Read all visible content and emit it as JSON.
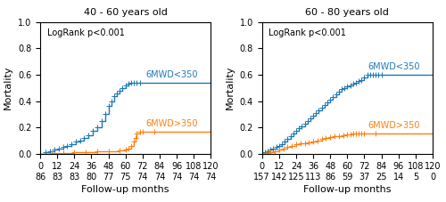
{
  "chart_data": [
    {
      "type": "step",
      "title": "40 - 60 years old",
      "xlabel": "Follow-up months",
      "ylabel": "Mortality",
      "xlim": [
        0,
        120
      ],
      "ylim": [
        0,
        1.0
      ],
      "xticks": [
        0,
        12,
        24,
        36,
        48,
        60,
        72,
        84,
        96,
        108,
        120
      ],
      "yticks": [
        0.0,
        0.2,
        0.4,
        0.6,
        0.8,
        1.0
      ],
      "grid": false,
      "annotations": [
        "LogRank p<0.001"
      ],
      "at_risk": [
        86,
        83,
        83,
        80,
        77,
        75,
        74,
        74,
        74,
        74,
        74
      ],
      "series": [
        {
          "name": "6MWD<350",
          "marker": "plus",
          "x": [
            0,
            4,
            7,
            10,
            13,
            16,
            19,
            22,
            25,
            28,
            31,
            34,
            37,
            40,
            43,
            46,
            48,
            50,
            52,
            54,
            56,
            58,
            60,
            62,
            64,
            66,
            68,
            70,
            120
          ],
          "values": [
            0.0,
            0.01,
            0.02,
            0.03,
            0.04,
            0.05,
            0.06,
            0.07,
            0.09,
            0.1,
            0.12,
            0.14,
            0.17,
            0.2,
            0.25,
            0.3,
            0.36,
            0.4,
            0.44,
            0.46,
            0.48,
            0.5,
            0.52,
            0.53,
            0.54,
            0.54,
            0.54,
            0.54,
            0.54
          ]
        },
        {
          "name": "6MWD>350",
          "marker": "plus",
          "x": [
            0,
            8,
            16,
            24,
            32,
            40,
            48,
            56,
            60,
            62,
            64,
            66,
            67,
            68,
            70,
            72,
            80,
            120
          ],
          "values": [
            0.0,
            0.003,
            0.005,
            0.008,
            0.01,
            0.015,
            0.02,
            0.025,
            0.03,
            0.04,
            0.06,
            0.09,
            0.12,
            0.155,
            0.165,
            0.165,
            0.165,
            0.165
          ]
        }
      ]
    },
    {
      "type": "step",
      "title": "60 - 80 years old",
      "xlabel": "Follow-up months",
      "ylabel": "Mortality",
      "xlim": [
        0,
        120
      ],
      "ylim": [
        0,
        1.0
      ],
      "xticks": [
        0,
        12,
        24,
        36,
        48,
        60,
        72,
        84,
        96,
        108,
        120
      ],
      "yticks": [
        0.0,
        0.2,
        0.4,
        0.6,
        0.8,
        1.0
      ],
      "grid": false,
      "annotations": [
        "LogRank p<0.001"
      ],
      "at_risk": [
        157,
        142,
        125,
        113,
        86,
        59,
        37,
        25,
        14,
        5,
        0
      ],
      "series": [
        {
          "name": "6MWD<350",
          "marker": "plus",
          "x": [
            0,
            2,
            4,
            6,
            8,
            10,
            12,
            14,
            16,
            18,
            20,
            22,
            24,
            26,
            28,
            30,
            32,
            34,
            36,
            38,
            40,
            42,
            44,
            46,
            48,
            50,
            52,
            54,
            56,
            58,
            60,
            62,
            64,
            66,
            68,
            70,
            72,
            74,
            76,
            78,
            80,
            82,
            84,
            120
          ],
          "values": [
            0.0,
            0.01,
            0.02,
            0.03,
            0.04,
            0.05,
            0.06,
            0.07,
            0.09,
            0.11,
            0.13,
            0.15,
            0.17,
            0.19,
            0.21,
            0.23,
            0.25,
            0.27,
            0.29,
            0.31,
            0.33,
            0.35,
            0.37,
            0.39,
            0.41,
            0.43,
            0.45,
            0.47,
            0.49,
            0.5,
            0.51,
            0.52,
            0.53,
            0.54,
            0.55,
            0.56,
            0.58,
            0.6,
            0.6,
            0.6,
            0.6,
            0.6,
            0.6,
            0.6
          ]
        },
        {
          "name": "6MWD>350",
          "marker": "plus",
          "x": [
            0,
            3,
            6,
            9,
            12,
            15,
            18,
            21,
            24,
            27,
            30,
            33,
            36,
            39,
            42,
            45,
            48,
            51,
            54,
            57,
            60,
            62,
            64,
            66,
            68,
            70,
            72,
            80,
            120
          ],
          "values": [
            0.0,
            0.005,
            0.01,
            0.02,
            0.03,
            0.04,
            0.05,
            0.06,
            0.07,
            0.075,
            0.08,
            0.085,
            0.09,
            0.1,
            0.11,
            0.12,
            0.125,
            0.13,
            0.135,
            0.14,
            0.145,
            0.148,
            0.15,
            0.15,
            0.15,
            0.15,
            0.15,
            0.15,
            0.15
          ]
        }
      ]
    }
  ]
}
